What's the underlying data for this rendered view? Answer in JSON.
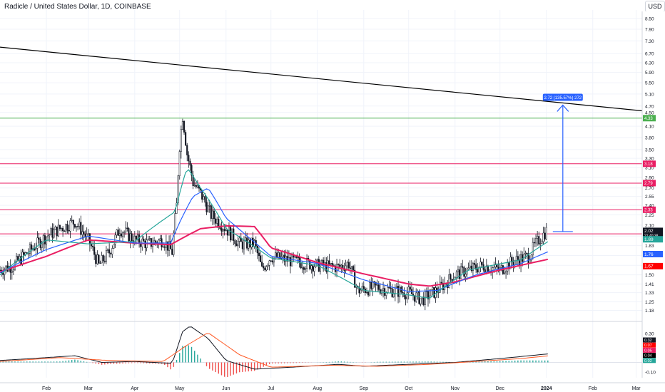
{
  "header": {
    "title": "Radicle / United States Dollar, 1D, COINBASE",
    "currency": "USD"
  },
  "chart_data": {
    "type": "candlestick",
    "price_scale": "log",
    "ylim": [
      1.1,
      9.0
    ],
    "x_start": "2023-01-01",
    "x_end": "2024-03-05",
    "x_ticks": [
      {
        "date": "2023-02-01",
        "label": "Feb"
      },
      {
        "date": "2023-03-01",
        "label": "Mar"
      },
      {
        "date": "2023-04-01",
        "label": "Apr"
      },
      {
        "date": "2023-05-01",
        "label": "May"
      },
      {
        "date": "2023-06-01",
        "label": "Jun"
      },
      {
        "date": "2023-07-01",
        "label": "Jul"
      },
      {
        "date": "2023-08-01",
        "label": "Aug"
      },
      {
        "date": "2023-09-01",
        "label": "Sep"
      },
      {
        "date": "2023-10-01",
        "label": "Oct"
      },
      {
        "date": "2023-11-01",
        "label": "Nov"
      },
      {
        "date": "2023-12-01",
        "label": "Dec"
      },
      {
        "date": "2024-01-01",
        "label": "2024"
      },
      {
        "date": "2024-02-01",
        "label": "Feb"
      },
      {
        "date": "2024-03-01",
        "label": "Mar"
      }
    ],
    "y_ticks": [
      "8.50",
      "7.90",
      "7.30",
      "6.70",
      "6.30",
      "5.90",
      "5.50",
      "5.10",
      "4.70",
      "4.50",
      "4.10",
      "3.80",
      "3.50",
      "3.30",
      "3.10",
      "2.90",
      "2.70",
      "2.55",
      "2.40",
      "2.25",
      "2.10",
      "1.95",
      "1.83",
      "1.71",
      "1.60",
      "1.50",
      "1.41",
      "1.33",
      "1.25",
      "1.18"
    ],
    "close_path": [
      [
        "2023-01-01",
        1.55
      ],
      [
        "2023-01-10",
        1.6
      ],
      [
        "2023-01-20",
        1.75
      ],
      [
        "2023-02-01",
        1.95
      ],
      [
        "2023-02-10",
        2.05
      ],
      [
        "2023-02-20",
        2.15
      ],
      [
        "2023-03-01",
        1.9
      ],
      [
        "2023-03-08",
        1.6
      ],
      [
        "2023-03-15",
        1.75
      ],
      [
        "2023-03-22",
        2.05
      ],
      [
        "2023-04-01",
        1.9
      ],
      [
        "2023-04-10",
        1.85
      ],
      [
        "2023-04-20",
        1.9
      ],
      [
        "2023-04-26",
        1.75
      ],
      [
        "2023-04-29",
        2.4
      ],
      [
        "2023-05-01",
        3.6
      ],
      [
        "2023-05-03",
        4.4
      ],
      [
        "2023-05-06",
        3.4
      ],
      [
        "2023-05-10",
        2.8
      ],
      [
        "2023-05-15",
        2.6
      ],
      [
        "2023-05-22",
        2.25
      ],
      [
        "2023-06-01",
        2.05
      ],
      [
        "2023-06-10",
        1.85
      ],
      [
        "2023-06-20",
        1.85
      ],
      [
        "2023-06-25",
        1.55
      ],
      [
        "2023-07-01",
        1.7
      ],
      [
        "2023-07-15",
        1.65
      ],
      [
        "2023-08-01",
        1.6
      ],
      [
        "2023-08-15",
        1.58
      ],
      [
        "2023-08-22",
        1.62
      ],
      [
        "2023-08-28",
        1.35
      ],
      [
        "2023-09-10",
        1.38
      ],
      [
        "2023-09-20",
        1.35
      ],
      [
        "2023-10-01",
        1.33
      ],
      [
        "2023-10-10",
        1.27
      ],
      [
        "2023-10-20",
        1.35
      ],
      [
        "2023-11-01",
        1.5
      ],
      [
        "2023-11-10",
        1.55
      ],
      [
        "2023-11-20",
        1.6
      ],
      [
        "2023-12-01",
        1.55
      ],
      [
        "2023-12-10",
        1.65
      ],
      [
        "2023-12-20",
        1.7
      ],
      [
        "2023-12-25",
        1.85
      ],
      [
        "2024-01-01",
        2.02
      ]
    ],
    "series": [
      {
        "type": "line",
        "color": "#e91e63",
        "points": [
          [
            "2023-01-01",
            1.53
          ],
          [
            "2023-02-01",
            1.7
          ],
          [
            "2023-03-01",
            1.9
          ],
          [
            "2023-04-01",
            1.86
          ],
          [
            "2023-04-25",
            1.84
          ],
          [
            "2023-05-15",
            2.05
          ],
          [
            "2023-06-01",
            2.09
          ],
          [
            "2023-06-20",
            2.08
          ],
          [
            "2023-07-01",
            1.8
          ],
          [
            "2023-08-01",
            1.63
          ],
          [
            "2023-09-01",
            1.51
          ],
          [
            "2023-10-01",
            1.41
          ],
          [
            "2023-10-15",
            1.39
          ],
          [
            "2023-11-01",
            1.43
          ],
          [
            "2023-12-01",
            1.55
          ],
          [
            "2024-01-03",
            1.67
          ]
        ]
      },
      {
        "type": "line",
        "color": "#2962ff",
        "points": [
          [
            "2023-01-01",
            1.52
          ],
          [
            "2023-02-01",
            1.78
          ],
          [
            "2023-03-01",
            1.95
          ],
          [
            "2023-04-01",
            1.86
          ],
          [
            "2023-04-25",
            1.86
          ],
          [
            "2023-05-10",
            2.55
          ],
          [
            "2023-05-20",
            2.7
          ],
          [
            "2023-06-01",
            2.2
          ],
          [
            "2023-06-15",
            1.95
          ],
          [
            "2023-07-01",
            1.7
          ],
          [
            "2023-08-01",
            1.62
          ],
          [
            "2023-09-01",
            1.45
          ],
          [
            "2023-10-01",
            1.34
          ],
          [
            "2023-10-20",
            1.35
          ],
          [
            "2023-11-15",
            1.5
          ],
          [
            "2023-12-15",
            1.62
          ],
          [
            "2024-01-03",
            1.76
          ]
        ]
      },
      {
        "type": "line",
        "color": "#26a69a",
        "points": [
          [
            "2023-01-01",
            1.5
          ],
          [
            "2023-02-01",
            1.9
          ],
          [
            "2023-03-01",
            1.85
          ],
          [
            "2023-04-01",
            1.88
          ],
          [
            "2023-04-28",
            2.3
          ],
          [
            "2023-05-06",
            3.1
          ],
          [
            "2023-05-15",
            2.7
          ],
          [
            "2023-06-01",
            2.05
          ],
          [
            "2023-07-01",
            1.68
          ],
          [
            "2023-08-01",
            1.6
          ],
          [
            "2023-09-01",
            1.35
          ],
          [
            "2023-10-01",
            1.31
          ],
          [
            "2023-10-15",
            1.28
          ],
          [
            "2023-11-10",
            1.55
          ],
          [
            "2023-12-15",
            1.66
          ],
          [
            "2024-01-03",
            1.89
          ]
        ]
      }
    ],
    "horizontal_levels": [
      {
        "value": 3.18,
        "color": "#e91e63",
        "label": "3.18"
      },
      {
        "value": 2.79,
        "color": "#e91e63",
        "label": "2.79"
      },
      {
        "value": 2.33,
        "color": "#e91e63",
        "label": "2.33"
      },
      {
        "value": 1.98,
        "color": "#e91e63",
        "label": "1.98"
      },
      {
        "value": 4.33,
        "color": "#4caf50",
        "label": "4.33"
      }
    ],
    "trendline": {
      "from": [
        "2023-01-01",
        7.0
      ],
      "to": [
        "2024-03-05",
        4.55
      ],
      "color": "#000000"
    },
    "measure": {
      "date": "2024-01-12",
      "from": 2.01,
      "to": 4.73,
      "label": "2.72 (135.57%) 272"
    },
    "price_tags": [
      {
        "value": 2.02,
        "label": "2.02",
        "sub": "21:40:38",
        "bg": "#131722"
      },
      {
        "value": 1.89,
        "label": "1.89",
        "bg": "#26a69a"
      },
      {
        "value": 1.76,
        "label": "1.76",
        "bg": "#2962ff"
      },
      {
        "value": 1.67,
        "label": "1.67",
        "bg": "#ff0000"
      }
    ]
  },
  "oscillator": {
    "type": "macd",
    "ylim": [
      -0.16,
      0.42
    ],
    "y_ticks": [
      "0.30",
      "0.20",
      "0.10",
      "-0.10"
    ],
    "macd_line": [
      [
        "2023-01-01",
        0.02
      ],
      [
        "2023-02-01",
        0.05
      ],
      [
        "2023-02-20",
        0.07
      ],
      [
        "2023-03-10",
        0.0
      ],
      [
        "2023-04-01",
        0.01
      ],
      [
        "2023-04-26",
        -0.01
      ],
      [
        "2023-05-03",
        0.32
      ],
      [
        "2023-05-08",
        0.38
      ],
      [
        "2023-05-20",
        0.25
      ],
      [
        "2023-06-01",
        0.02
      ],
      [
        "2023-06-20",
        -0.07
      ],
      [
        "2023-07-15",
        -0.05
      ],
      [
        "2023-08-15",
        -0.02
      ],
      [
        "2023-09-01",
        -0.04
      ],
      [
        "2023-10-01",
        -0.02
      ],
      [
        "2023-11-01",
        0.0
      ],
      [
        "2023-12-01",
        0.04
      ],
      [
        "2024-01-03",
        0.09
      ]
    ],
    "signal_line": [
      [
        "2023-01-01",
        0.01
      ],
      [
        "2023-02-10",
        0.05
      ],
      [
        "2023-03-15",
        0.02
      ],
      [
        "2023-04-20",
        0.01
      ],
      [
        "2023-05-06",
        0.18
      ],
      [
        "2023-05-20",
        0.31
      ],
      [
        "2023-06-10",
        0.08
      ],
      [
        "2023-07-01",
        -0.05
      ],
      [
        "2023-08-10",
        -0.03
      ],
      [
        "2023-09-10",
        -0.04
      ],
      [
        "2023-10-15",
        -0.02
      ],
      [
        "2023-11-15",
        0.01
      ],
      [
        "2023-12-15",
        0.04
      ],
      [
        "2024-01-03",
        0.07
      ]
    ],
    "tags": [
      {
        "label": "0.32",
        "bg": "#131722"
      },
      {
        "label": "0.07",
        "bg": "#ff0000"
      },
      {
        "label": "0.05",
        "bg": "#e91e63"
      },
      {
        "label": "0.04",
        "bg": "#000000"
      },
      {
        "label": "0.02",
        "bg": "#26a69a"
      }
    ]
  }
}
